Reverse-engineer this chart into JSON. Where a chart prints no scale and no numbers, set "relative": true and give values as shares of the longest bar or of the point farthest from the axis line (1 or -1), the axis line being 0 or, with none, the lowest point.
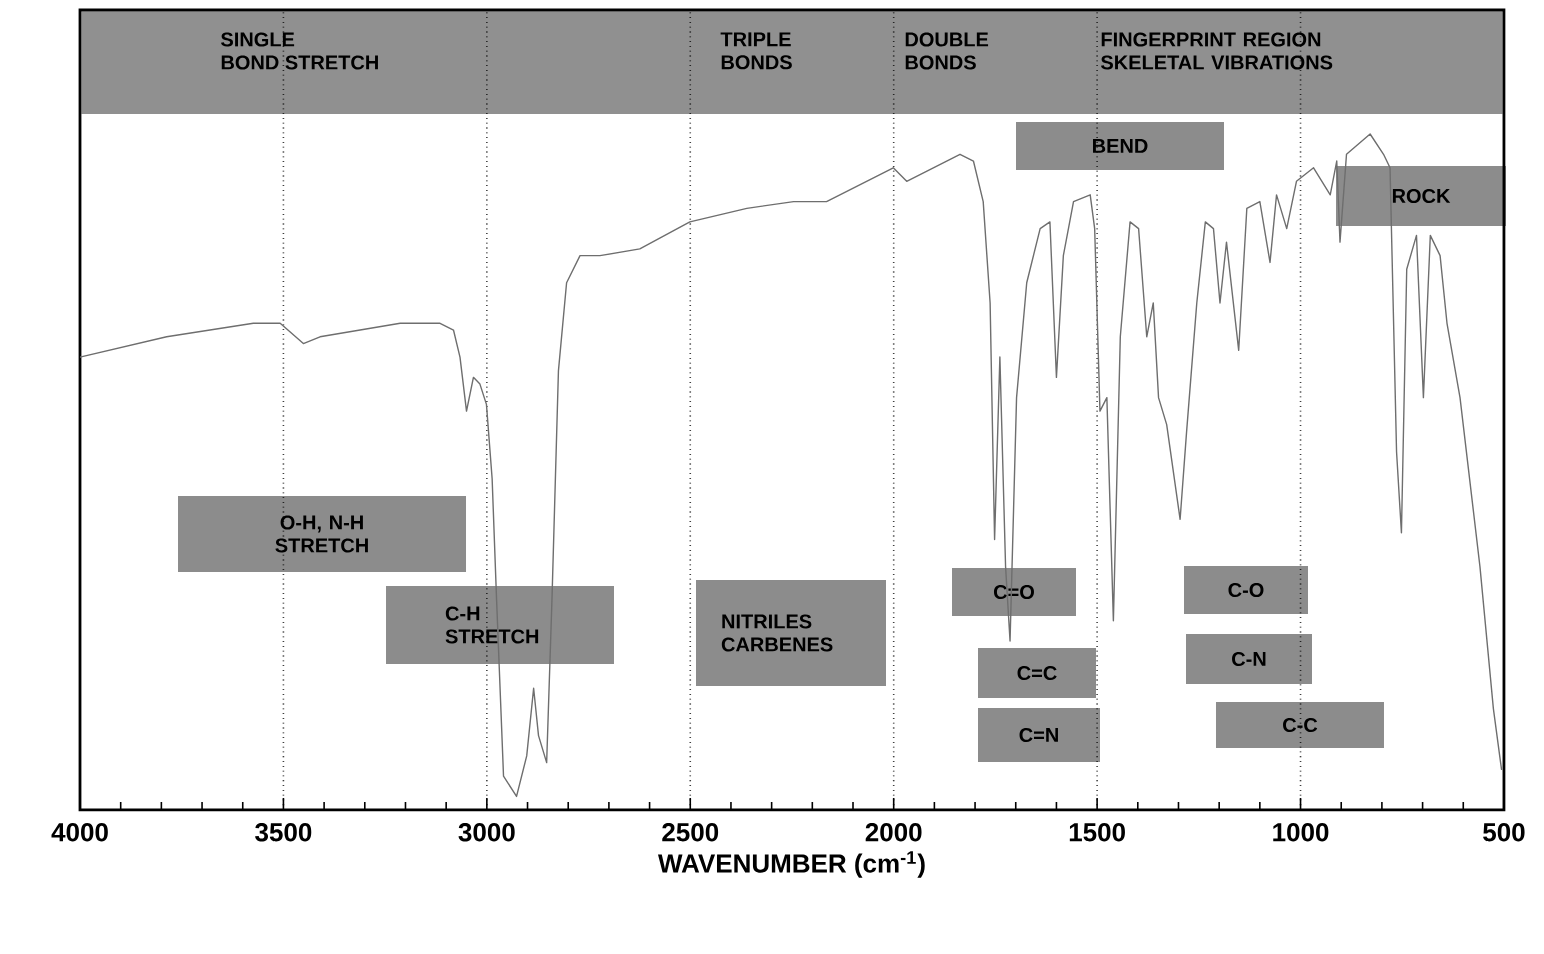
{
  "chart_data": {
    "type": "line",
    "relative": true,
    "xlabel": "WAVENUMBER (cm$^{-1}$)",
    "xlim": [
      4000,
      500
    ],
    "xticks": [
      4000,
      3500,
      3000,
      2500,
      2000,
      1500,
      1000,
      500
    ],
    "grid": "x",
    "color": "#6e6e6e",
    "x": [
      4000,
      3787,
      3574,
      3508,
      3451,
      3410,
      3213,
      3115,
      3082,
      3066,
      3050,
      3033,
      3017,
      3001,
      2987,
      2976,
      2959,
      2927,
      2902,
      2885,
      2873,
      2853,
      2840,
      2824,
      2804,
      2771,
      2722,
      2624,
      2501,
      2361,
      2246,
      2165,
      2001,
      1968,
      1837,
      1804,
      1780,
      1763,
      1752,
      1739,
      1725,
      1714,
      1698,
      1673,
      1640,
      1616,
      1600,
      1583,
      1558,
      1517,
      1506,
      1493,
      1476,
      1460,
      1443,
      1419,
      1398,
      1378,
      1362,
      1349,
      1329,
      1296,
      1280,
      1255,
      1234,
      1214,
      1198,
      1182,
      1152,
      1132,
      1100,
      1075,
      1059,
      1034,
      1010,
      968,
      927,
      911,
      903,
      887,
      829,
      796,
      780,
      764,
      752,
      739,
      715,
      698,
      681,
      657,
      640,
      608,
      559,
      526,
      506
    ],
    "values": [
      0.67,
      0.7,
      0.72,
      0.72,
      0.69,
      0.7,
      0.72,
      0.72,
      0.71,
      0.67,
      0.59,
      0.64,
      0.63,
      0.6,
      0.49,
      0.31,
      0.05,
      0.02,
      0.08,
      0.18,
      0.11,
      0.07,
      0.31,
      0.65,
      0.78,
      0.82,
      0.82,
      0.83,
      0.87,
      0.89,
      0.9,
      0.9,
      0.95,
      0.93,
      0.97,
      0.96,
      0.9,
      0.75,
      0.4,
      0.67,
      0.36,
      0.25,
      0.61,
      0.78,
      0.86,
      0.87,
      0.64,
      0.82,
      0.9,
      0.91,
      0.86,
      0.59,
      0.61,
      0.28,
      0.7,
      0.87,
      0.86,
      0.7,
      0.75,
      0.61,
      0.57,
      0.43,
      0.56,
      0.75,
      0.87,
      0.86,
      0.75,
      0.84,
      0.68,
      0.89,
      0.9,
      0.81,
      0.91,
      0.86,
      0.93,
      0.95,
      0.91,
      0.96,
      0.84,
      0.97,
      1.0,
      0.97,
      0.95,
      0.53,
      0.41,
      0.8,
      0.85,
      0.61,
      0.85,
      0.82,
      0.72,
      0.61,
      0.36,
      0.15,
      0.06
    ],
    "annotations": [
      "SINGLE",
      "BOND STRETCH",
      "TRIPLE BONDS",
      "DOUBLE BONDS",
      "FINGERPRINT REGION SKELETAL VIBRATIONS",
      "BEND",
      "ROCK",
      "O-H, N-H STRETCH",
      "C-H STRETCH",
      "NITRILES CARBENES",
      "C=O",
      "C=C",
      "C=N",
      "C-O",
      "C-N",
      "C-C"
    ]
  }
}
